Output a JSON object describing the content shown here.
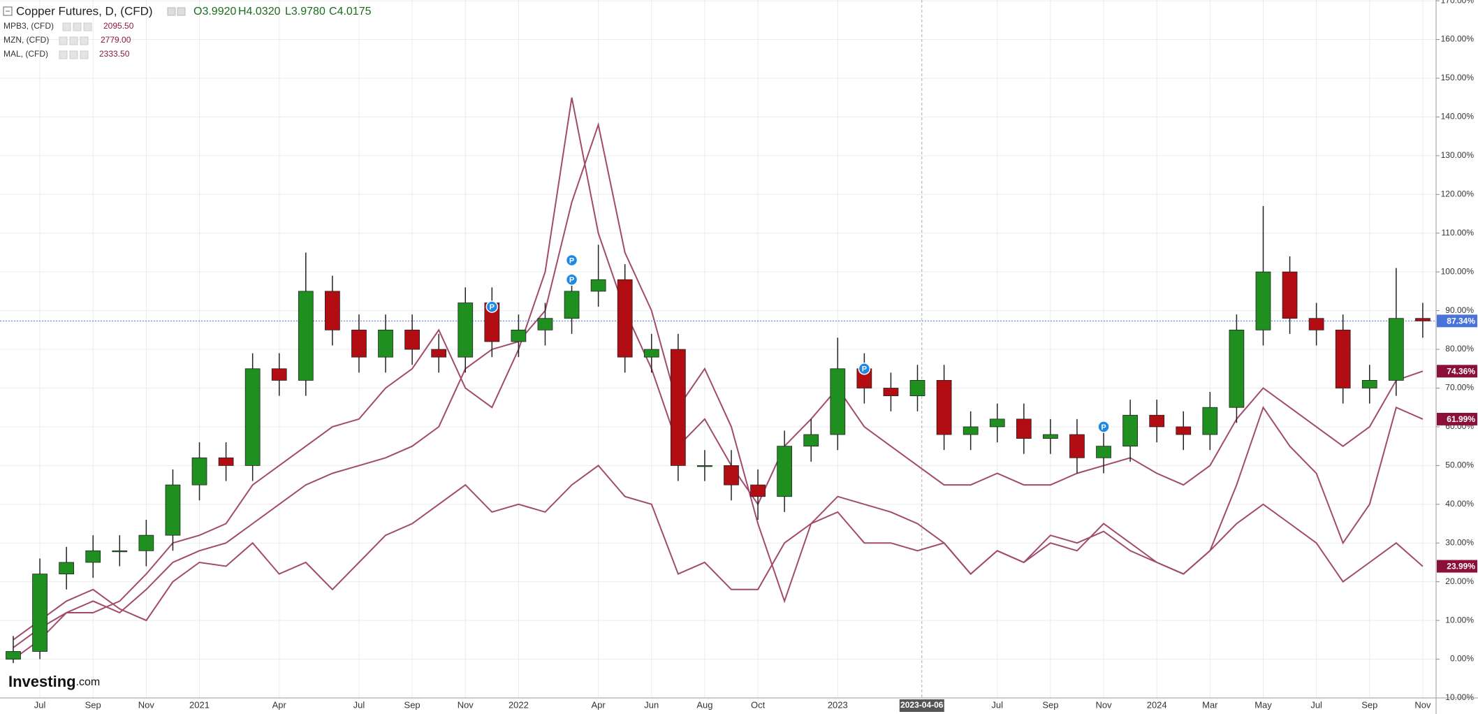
{
  "chart_data": {
    "type": "candlestick",
    "title": "Copper Futures, D, (CFD)",
    "ohlc_labels": [
      "O3.9920",
      "H4.0320",
      "L3.9780",
      "C4.0175"
    ],
    "x": [
      "2020-06",
      "2020-07",
      "2020-08",
      "2020-09",
      "2020-10",
      "2020-11",
      "2020-12",
      "2021-01",
      "2021-02",
      "2021-03",
      "2021-04",
      "2021-05",
      "2021-06",
      "2021-07",
      "2021-08",
      "2021-09",
      "2021-10",
      "2021-11",
      "2021-12",
      "2022-01",
      "2022-02",
      "2022-03",
      "2022-04",
      "2022-05",
      "2022-06",
      "2022-07",
      "2022-08",
      "2022-09",
      "2022-10",
      "2022-11",
      "2022-12",
      "2023-01",
      "2023-02",
      "2023-03",
      "2023-04",
      "2023-05",
      "2023-06",
      "2023-07",
      "2023-08",
      "2023-09",
      "2023-10",
      "2023-11",
      "2023-12",
      "2024-01",
      "2024-02",
      "2024-03",
      "2024-04",
      "2024-05",
      "2024-06",
      "2024-07",
      "2024-08",
      "2024-09",
      "2024-10",
      "2024-11"
    ],
    "open": [
      0,
      2,
      22,
      25,
      28,
      28,
      32,
      45,
      52,
      50,
      75,
      72,
      95,
      85,
      78,
      85,
      80,
      78,
      92,
      82,
      85,
      88,
      95,
      98,
      78,
      80,
      50,
      50,
      45,
      42,
      55,
      58,
      75,
      70,
      68,
      72,
      58,
      60,
      62,
      57,
      58,
      52,
      55,
      63,
      60,
      58,
      65,
      85,
      100,
      88,
      85,
      70,
      72,
      88
    ],
    "high": [
      6,
      26,
      29,
      32,
      32,
      36,
      49,
      56,
      56,
      79,
      79,
      105,
      99,
      89,
      89,
      89,
      84,
      96,
      96,
      89,
      92,
      99,
      107,
      102,
      84,
      84,
      54,
      54,
      49,
      59,
      62,
      83,
      79,
      74,
      76,
      76,
      64,
      66,
      66,
      62,
      62,
      59,
      67,
      67,
      64,
      69,
      89,
      117,
      104,
      92,
      89,
      76,
      101,
      92
    ],
    "low": [
      -1,
      0,
      18,
      21,
      24,
      24,
      28,
      41,
      46,
      46,
      68,
      68,
      81,
      74,
      74,
      76,
      74,
      74,
      78,
      78,
      81,
      84,
      91,
      74,
      74,
      46,
      46,
      41,
      36,
      38,
      51,
      54,
      66,
      64,
      64,
      54,
      54,
      56,
      53,
      53,
      48,
      48,
      51,
      56,
      54,
      54,
      61,
      81,
      84,
      81,
      66,
      66,
      68,
      83
    ],
    "close": [
      2,
      22,
      25,
      28,
      28,
      32,
      45,
      52,
      50,
      75,
      72,
      95,
      85,
      78,
      85,
      80,
      78,
      92,
      82,
      85,
      88,
      95,
      98,
      78,
      80,
      50,
      50,
      45,
      42,
      55,
      58,
      75,
      70,
      68,
      72,
      58,
      60,
      62,
      57,
      58,
      52,
      55,
      63,
      60,
      58,
      65,
      85,
      100,
      88,
      85,
      70,
      72,
      88,
      87.34
    ],
    "up_color": "#1f8f1f",
    "down_color": "#b10d12",
    "last_value_label": "87.34%",
    "last_color": "#4a73d9",
    "overlays": [
      {
        "name": "MPB3, (CFD)",
        "price": "2095.50",
        "color": "#a24a6e",
        "last_value_label": "23.99%",
        "values": [
          5,
          10,
          15,
          18,
          13,
          10,
          20,
          25,
          24,
          30,
          22,
          25,
          18,
          25,
          32,
          35,
          40,
          45,
          38,
          40,
          38,
          45,
          50,
          42,
          40,
          22,
          25,
          18,
          18,
          30,
          35,
          38,
          30,
          30,
          28,
          30,
          22,
          28,
          25,
          32,
          30,
          33,
          28,
          25,
          22,
          28,
          35,
          40,
          35,
          30,
          20,
          25,
          30,
          23.99
        ]
      },
      {
        "name": "MZN, (CFD)",
        "price": "2779.00",
        "color": "#a24a6e",
        "last_value_label": "61.99%",
        "values": [
          0,
          5,
          12,
          15,
          12,
          18,
          25,
          28,
          30,
          35,
          40,
          45,
          48,
          50,
          52,
          55,
          60,
          75,
          80,
          82,
          90,
          118,
          138,
          105,
          90,
          65,
          75,
          60,
          35,
          15,
          35,
          42,
          40,
          38,
          35,
          30,
          22,
          28,
          25,
          30,
          28,
          35,
          30,
          25,
          22,
          28,
          45,
          65,
          55,
          48,
          30,
          40,
          65,
          61.99
        ]
      },
      {
        "name": "MAL, (CFD)",
        "price": "2333.50",
        "color": "#a24a6e",
        "last_value_label": "74.36%",
        "values": [
          3,
          8,
          12,
          12,
          15,
          22,
          30,
          32,
          35,
          45,
          50,
          55,
          60,
          62,
          70,
          75,
          85,
          70,
          65,
          80,
          100,
          145,
          110,
          90,
          75,
          55,
          62,
          50,
          40,
          55,
          62,
          70,
          60,
          55,
          50,
          45,
          45,
          48,
          45,
          45,
          48,
          50,
          52,
          48,
          45,
          50,
          62,
          70,
          65,
          60,
          55,
          60,
          72,
          74.36
        ]
      }
    ],
    "overlay_last_color": "#8b0f3a",
    "xlim": [
      "2020-06",
      "2024-12"
    ],
    "xticks": [
      {
        "value": "2020-07",
        "label": "Jul"
      },
      {
        "value": "2020-09",
        "label": "Sep"
      },
      {
        "value": "2020-11",
        "label": "Nov"
      },
      {
        "value": "2021-01",
        "label": "2021"
      },
      {
        "value": "2021-04",
        "label": "Apr"
      },
      {
        "value": "2021-07",
        "label": "Jul"
      },
      {
        "value": "2021-09",
        "label": "Sep"
      },
      {
        "value": "2021-11",
        "label": "Nov"
      },
      {
        "value": "2022-01",
        "label": "2022"
      },
      {
        "value": "2022-04",
        "label": "Apr"
      },
      {
        "value": "2022-06",
        "label": "Jun"
      },
      {
        "value": "2022-08",
        "label": "Aug"
      },
      {
        "value": "2022-10",
        "label": "Oct"
      },
      {
        "value": "2023-01",
        "label": "2023"
      },
      {
        "value": "2023-07",
        "label": "Jul"
      },
      {
        "value": "2023-09",
        "label": "Sep"
      },
      {
        "value": "2023-11",
        "label": "Nov"
      },
      {
        "value": "2024-01",
        "label": "2024"
      },
      {
        "value": "2024-03",
        "label": "Mar"
      },
      {
        "value": "2024-05",
        "label": "May"
      },
      {
        "value": "2024-07",
        "label": "Jul"
      },
      {
        "value": "2024-09",
        "label": "Sep"
      },
      {
        "value": "2024-11",
        "label": "Nov"
      }
    ],
    "crosshair": "2023-04-06",
    "ylim": [
      -10,
      170.2
    ],
    "yticks": [
      {
        "value": -10,
        "label": "-10.00%"
      },
      {
        "value": 0,
        "label": "0.00%"
      },
      {
        "value": 10,
        "label": "10.00%"
      },
      {
        "value": 20,
        "label": "20.00%"
      },
      {
        "value": 30,
        "label": "30.00%"
      },
      {
        "value": 40,
        "label": "40.00%"
      },
      {
        "value": 50,
        "label": "50.00%"
      },
      {
        "value": 60,
        "label": "60.00%"
      },
      {
        "value": 70,
        "label": "70.00%"
      },
      {
        "value": 80,
        "label": "80.00%"
      },
      {
        "value": 90,
        "label": "90.00%"
      },
      {
        "value": 100,
        "label": "100.00%"
      },
      {
        "value": 110,
        "label": "110.00%"
      },
      {
        "value": 120,
        "label": "120.00%"
      },
      {
        "value": 130,
        "label": "130.00%"
      },
      {
        "value": 140,
        "label": "140.00%"
      },
      {
        "value": 150,
        "label": "150.00%"
      },
      {
        "value": 160,
        "label": "160.00%"
      },
      {
        "value": 170,
        "label": "170.00%"
      }
    ],
    "markers": [
      {
        "x": "2021-12",
        "value": 91,
        "label": "P"
      },
      {
        "x": "2022-03",
        "value": 103,
        "label": "P"
      },
      {
        "x": "2022-03",
        "value": 98,
        "label": "P"
      },
      {
        "x": "2023-02",
        "value": 75,
        "label": "P"
      },
      {
        "x": "2023-11",
        "value": 60,
        "label": "P"
      }
    ],
    "grid": true,
    "watermark": {
      "brand": "Investing",
      "suffix": ".com"
    }
  }
}
